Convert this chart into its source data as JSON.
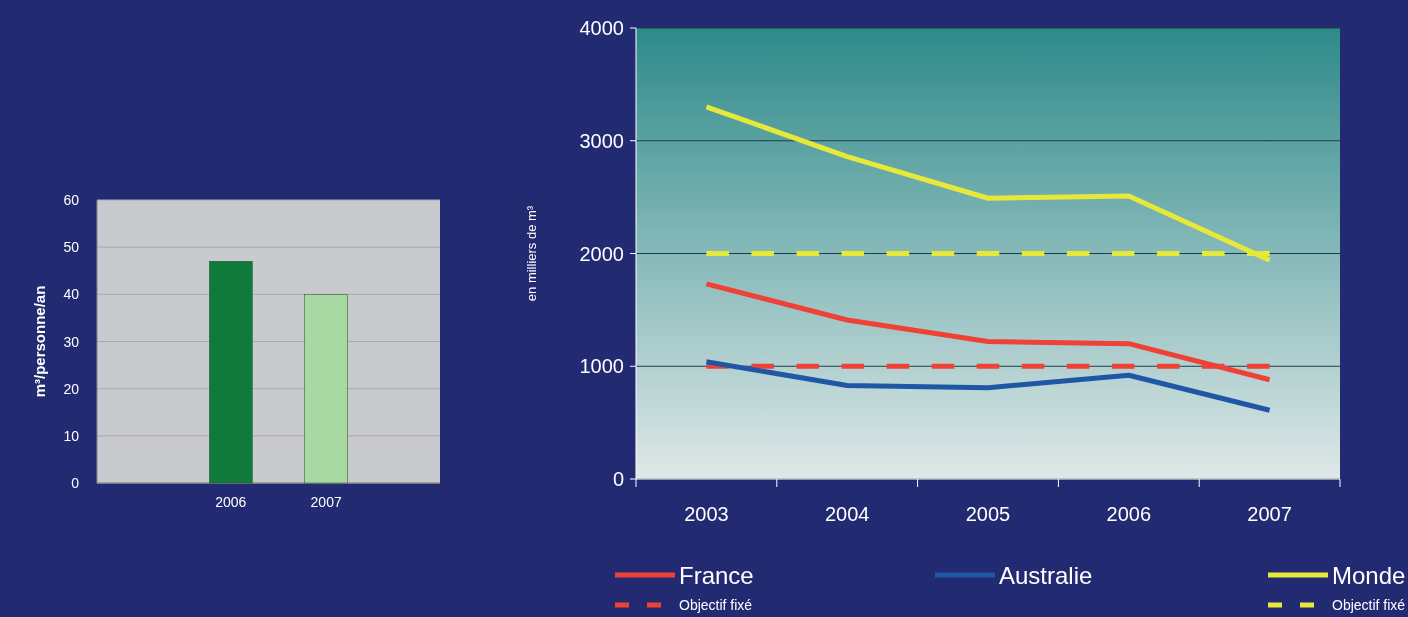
{
  "chart_data": [
    {
      "type": "bar",
      "categories": [
        "2006",
        "2007"
      ],
      "values": [
        47,
        40
      ],
      "colors": [
        "#0f7a3a",
        "#a9d9a3"
      ],
      "ylabel": "m³/personne/an",
      "ylim": [
        0,
        60
      ],
      "yticks": [
        0,
        10,
        20,
        30,
        40,
        50,
        60
      ],
      "grid": "y"
    },
    {
      "type": "line",
      "categories": [
        "2003",
        "2004",
        "2005",
        "2006",
        "2007"
      ],
      "ylabel": "en milliers de m³",
      "ylim": [
        0,
        4000
      ],
      "yticks": [
        0,
        1000,
        2000,
        3000,
        4000
      ],
      "grid": "y",
      "legend": "bottom",
      "series": [
        {
          "name": "France",
          "color": "#ef4136",
          "values": [
            1730,
            1410,
            1220,
            1200,
            880
          ]
        },
        {
          "name": "Objectif fixé",
          "color": "#ef4136",
          "line_style": "dashed",
          "values": [
            1000,
            1000,
            1000,
            1000,
            1000
          ]
        },
        {
          "name": "Australie",
          "color": "#1f57a5",
          "values": [
            1040,
            830,
            810,
            920,
            610
          ]
        },
        {
          "name": "Monde",
          "color": "#e6e83a",
          "values": [
            3300,
            2860,
            2490,
            2510,
            1940
          ]
        },
        {
          "name": "Objectif fixé",
          "color": "#e6e83a",
          "line_style": "dashed",
          "values": [
            2000,
            2000,
            2000,
            2000,
            2000
          ]
        }
      ]
    }
  ]
}
